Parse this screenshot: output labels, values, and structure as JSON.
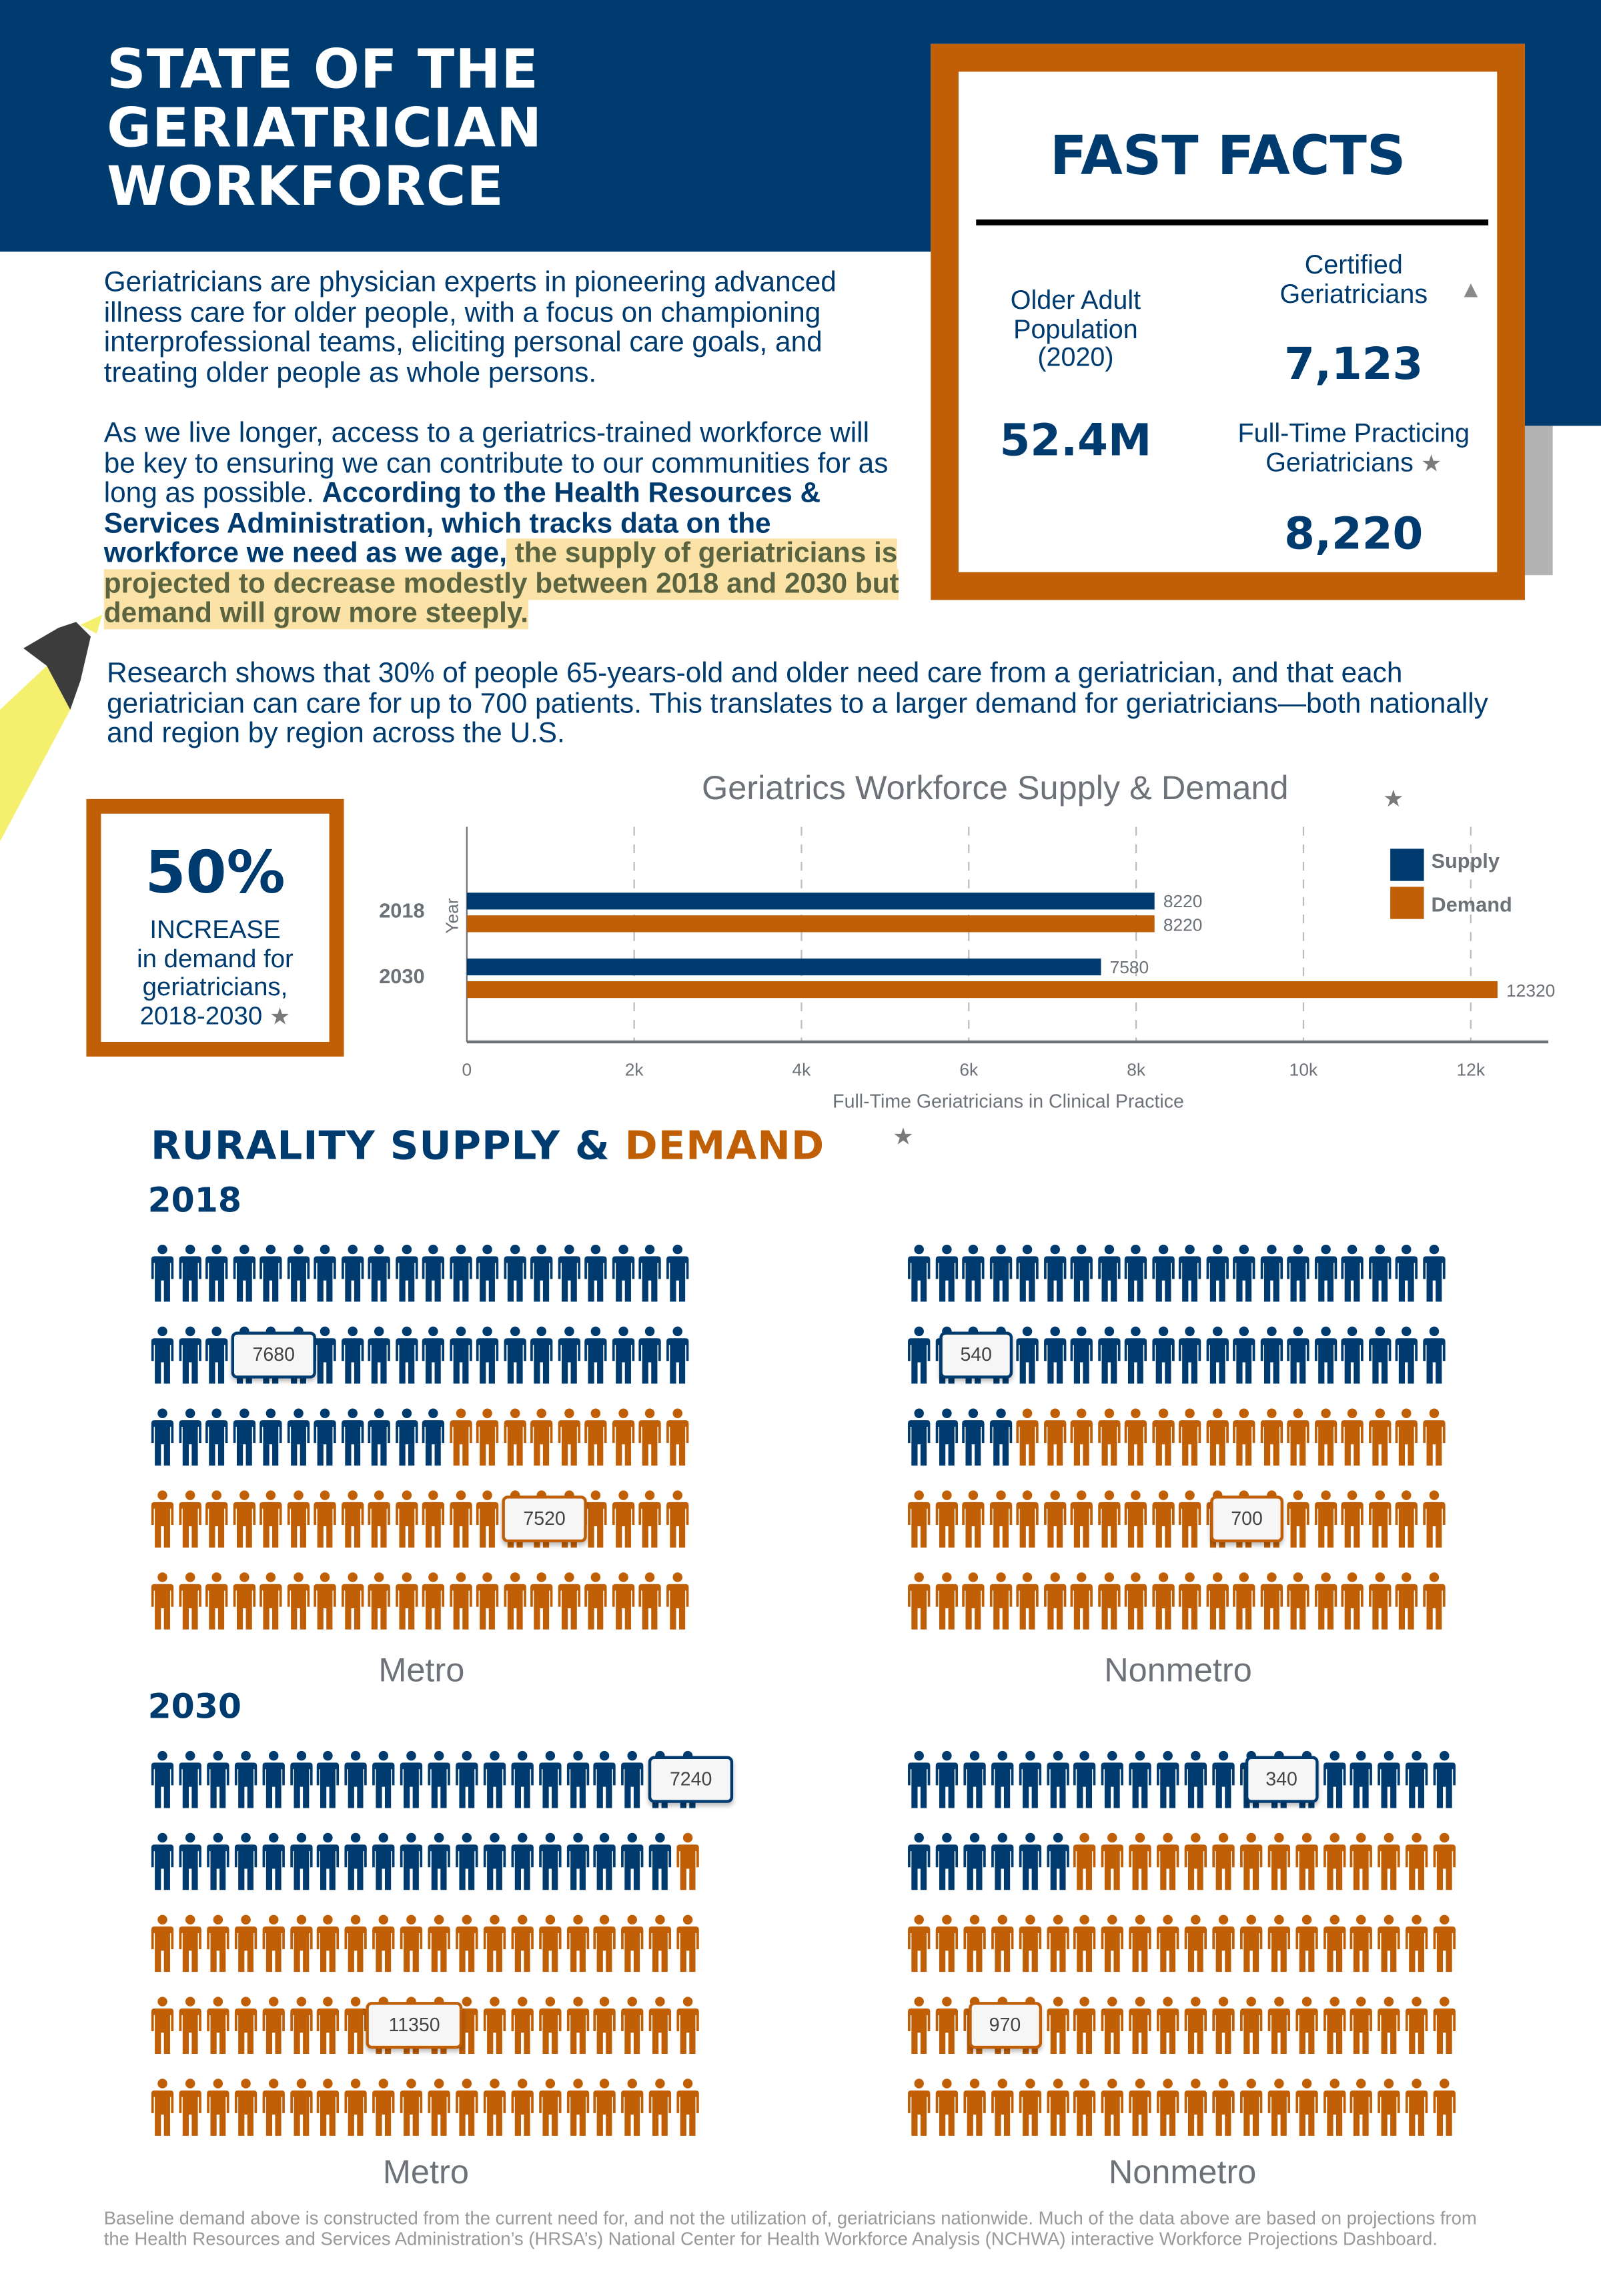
{
  "colors": {
    "supply": "#003b6f",
    "demand": "#c05f06",
    "highlight": "#fbe3a8"
  },
  "header": {
    "title_lines": [
      "STATE OF THE",
      "GERIATRICIAN",
      "WORKFORCE"
    ]
  },
  "fast_facts": {
    "title": "FAST FACTS",
    "older_adult": {
      "label_lines": [
        "Older Adult",
        "Population",
        "(2020)"
      ],
      "value": "52.4M"
    },
    "certified": {
      "label_lines": [
        "Certified",
        "Geriatricians"
      ],
      "value": "7,123",
      "icon": "triangle-icon"
    },
    "full_time": {
      "label_lines": [
        "Full-Time Practicing",
        "Geriatricians"
      ],
      "value": "8,220",
      "icon": "star-icon"
    }
  },
  "intro": {
    "p1": "Geriatricians are physician experts in pioneering advanced illness care for older people, with a focus on championing interprofessional teams, eliciting personal care goals, and treating older people as whole persons.",
    "p2_plain": "As we live longer, access to a geriatrics-trained workforce will be key to ensuring we can contribute to our communities for as long as possible. ",
    "p2_bold": "According to the Health Resources & Services Administration, which tracks data on the workforce we need as we age,",
    "p2_highlight": " the supply of geriatricians is projected to decrease modestly between 2018 and 2030 but demand will grow more steeply.",
    "p3": "Research shows that 30% of people 65-years-old and older need care from a geriatrician, and that each geriatrician can care for up to 700 patients. This translates to a larger demand for geriatricians—both nationally and region by region across the U.S."
  },
  "increase_box": {
    "value": "50%",
    "label_lines": [
      "INCREASE",
      "in demand for",
      "geriatricians,",
      "2018-2030"
    ]
  },
  "chart_data": {
    "type": "bar",
    "orientation": "horizontal",
    "title": "Geriatrics Workforce Supply & Demand",
    "xlabel": "Full-Time Geriatricians in Clinical Practice",
    "ylabel": "Year",
    "categories": [
      "2018",
      "2030"
    ],
    "series": [
      {
        "name": "Supply",
        "values": [
          8220,
          7580
        ]
      },
      {
        "name": "Demand",
        "values": [
          8220,
          12320
        ]
      }
    ],
    "xlim": [
      0,
      13000
    ],
    "x_ticks": [
      0,
      2000,
      4000,
      6000,
      8000,
      10000,
      12000
    ],
    "x_tick_labels": [
      "0",
      "2k",
      "4k",
      "6k",
      "8k",
      "10k",
      "12k"
    ],
    "grid": "vertical dashed",
    "legend": "top-right"
  },
  "rurality": {
    "title_a": "RURALITY SUPPLY & ",
    "title_b": "DEMAND",
    "years": [
      {
        "year": "2018",
        "panels": [
          {
            "region": "Metro",
            "supply": 7680,
            "demand": 7520,
            "supply_label": "7680",
            "demand_label": "7520",
            "icons_total": 100,
            "icons_supply": 51
          },
          {
            "region": "Nonmetro",
            "supply": 540,
            "demand": 700,
            "supply_label": "540",
            "demand_label": "700",
            "icons_total": 100,
            "icons_supply": 44
          }
        ]
      },
      {
        "year": "2030",
        "panels": [
          {
            "region": "Metro",
            "supply": 7240,
            "demand": 11350,
            "supply_label": "7240",
            "demand_label": "11350",
            "icons_total": 100,
            "icons_supply": 39
          },
          {
            "region": "Nonmetro",
            "supply": 340,
            "demand": 970,
            "supply_label": "340",
            "demand_label": "970",
            "icons_total": 100,
            "icons_supply": 26
          }
        ]
      }
    ]
  },
  "footer": "Baseline demand above is constructed from the current need for, and not the utilization of, geriatricians nationwide. Much of the data above are based on projections from the Health Resources and Services Administration’s (HRSA’s) National Center for Health Workforce Analysis (NCHWA) interactive Workforce Projections Dashboard."
}
